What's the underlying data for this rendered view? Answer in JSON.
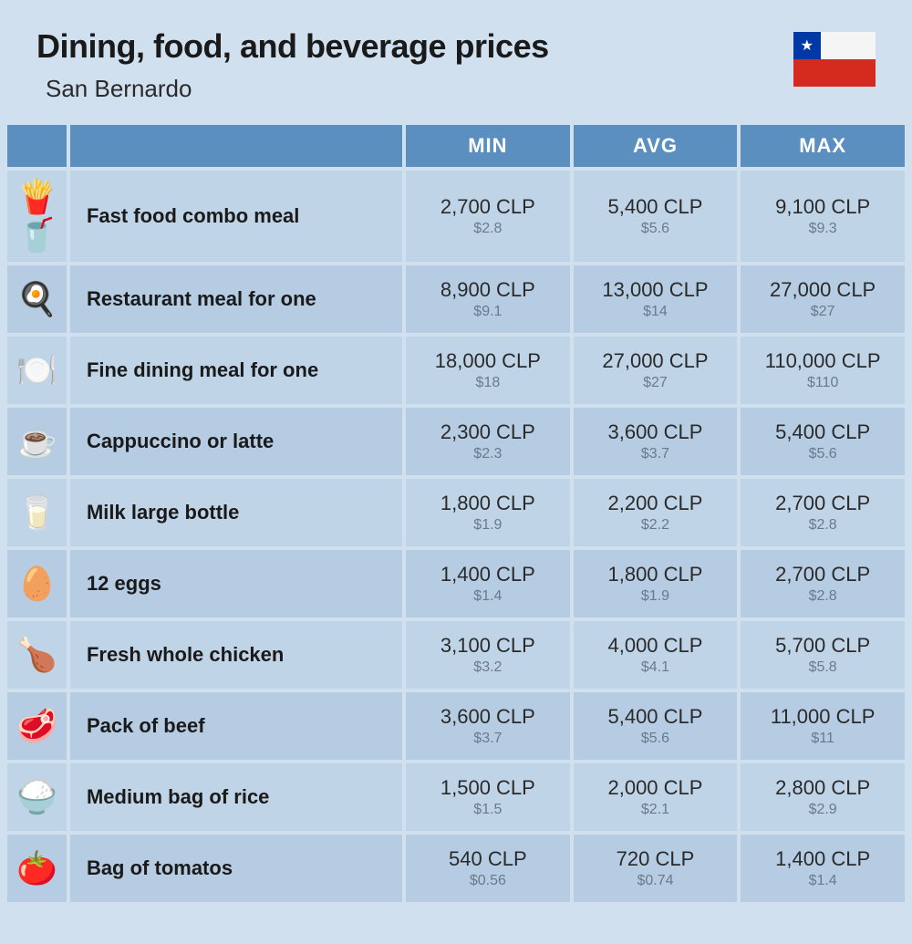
{
  "header": {
    "title": "Dining, food, and beverage prices",
    "subtitle": "San Bernardo"
  },
  "flag": {
    "canton_color": "#0039a6",
    "white_color": "#f5f5f5",
    "red_color": "#d52b1e",
    "star": "★"
  },
  "columns": {
    "min": "MIN",
    "avg": "AVG",
    "max": "MAX"
  },
  "rows": [
    {
      "name": "Fast food combo meal",
      "icon": "fast-food",
      "min_local": "2,700 CLP",
      "min_usd": "$2.8",
      "avg_local": "5,400 CLP",
      "avg_usd": "$5.6",
      "max_local": "9,100 CLP",
      "max_usd": "$9.3"
    },
    {
      "name": "Restaurant meal for one",
      "icon": "restaurant-meal",
      "min_local": "8,900 CLP",
      "min_usd": "$9.1",
      "avg_local": "13,000 CLP",
      "avg_usd": "$14",
      "max_local": "27,000 CLP",
      "max_usd": "$27"
    },
    {
      "name": "Fine dining meal for one",
      "icon": "fine-dining",
      "min_local": "18,000 CLP",
      "min_usd": "$18",
      "avg_local": "27,000 CLP",
      "avg_usd": "$27",
      "max_local": "110,000 CLP",
      "max_usd": "$110"
    },
    {
      "name": "Cappuccino or latte",
      "icon": "coffee",
      "min_local": "2,300 CLP",
      "min_usd": "$2.3",
      "avg_local": "3,600 CLP",
      "avg_usd": "$3.7",
      "max_local": "5,400 CLP",
      "max_usd": "$5.6"
    },
    {
      "name": "Milk large bottle",
      "icon": "milk",
      "min_local": "1,800 CLP",
      "min_usd": "$1.9",
      "avg_local": "2,200 CLP",
      "avg_usd": "$2.2",
      "max_local": "2,700 CLP",
      "max_usd": "$2.8"
    },
    {
      "name": "12 eggs",
      "icon": "eggs",
      "min_local": "1,400 CLP",
      "min_usd": "$1.4",
      "avg_local": "1,800 CLP",
      "avg_usd": "$1.9",
      "max_local": "2,700 CLP",
      "max_usd": "$2.8"
    },
    {
      "name": "Fresh whole chicken",
      "icon": "chicken",
      "min_local": "3,100 CLP",
      "min_usd": "$3.2",
      "avg_local": "4,000 CLP",
      "avg_usd": "$4.1",
      "max_local": "5,700 CLP",
      "max_usd": "$5.8"
    },
    {
      "name": "Pack of beef",
      "icon": "beef",
      "min_local": "3,600 CLP",
      "min_usd": "$3.7",
      "avg_local": "5,400 CLP",
      "avg_usd": "$5.6",
      "max_local": "11,000 CLP",
      "max_usd": "$11"
    },
    {
      "name": "Medium bag of rice",
      "icon": "rice",
      "min_local": "1,500 CLP",
      "min_usd": "$1.5",
      "avg_local": "2,000 CLP",
      "avg_usd": "$2.1",
      "max_local": "2,800 CLP",
      "max_usd": "$2.9"
    },
    {
      "name": "Bag of tomatos",
      "icon": "tomatoes",
      "min_local": "540 CLP",
      "min_usd": "$0.56",
      "avg_local": "720 CLP",
      "avg_usd": "$0.74",
      "max_local": "1,400 CLP",
      "max_usd": "$1.4"
    }
  ],
  "icons": {
    "fast-food": "🍟🥤",
    "restaurant-meal": "🍳",
    "fine-dining": "🍽️",
    "coffee": "☕",
    "milk": "🥛",
    "eggs": "🥚",
    "chicken": "🍗",
    "beef": "🥩",
    "rice": "🍚",
    "tomatoes": "🍅"
  },
  "styling": {
    "background": "#d0e0ef",
    "header_bg": "#5a8fbf",
    "row_odd_bg": "#c0d4e8",
    "row_even_bg": "#b5cce3",
    "title_color": "#1a1a1a",
    "price_sub_color": "#6a7a8a",
    "title_fontsize": 36,
    "subtitle_fontsize": 26,
    "header_fontsize": 22,
    "name_fontsize": 22,
    "price_main_fontsize": 22,
    "price_sub_fontsize": 16
  }
}
